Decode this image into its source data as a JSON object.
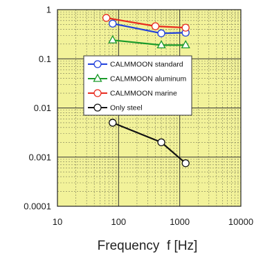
{
  "chart_data": {
    "type": "line",
    "x_scale": "log",
    "y_scale": "log",
    "xlim": [
      10,
      10000
    ],
    "ylim": [
      0.0001,
      1
    ],
    "x_ticks": [
      "10",
      "100",
      "1000",
      "10000"
    ],
    "y_ticks": [
      "1",
      "0.1",
      "0.01",
      "0.001",
      "0.0001"
    ],
    "xlabel": "Frequency  f [Hz]",
    "ylabel": "",
    "grid": true,
    "legend_position": "upper-middle",
    "plot_background": "#f2f29a",
    "series": [
      {
        "name": "CALMMOON standard",
        "color": "#1f3fdc",
        "marker": "circle",
        "x": [
          80,
          500,
          1250
        ],
        "y": [
          0.52,
          0.33,
          0.34
        ]
      },
      {
        "name": "CALMMOON aluminum",
        "color": "#1a9a2a",
        "marker": "triangle",
        "x": [
          80,
          500,
          1250
        ],
        "y": [
          0.24,
          0.19,
          0.19
        ]
      },
      {
        "name": "CALMMOON marine",
        "color": "#e82a1e",
        "marker": "circle",
        "x": [
          63,
          400,
          1250
        ],
        "y": [
          0.68,
          0.46,
          0.43
        ]
      },
      {
        "name": "Only steel",
        "color": "#111111",
        "marker": "circle",
        "x": [
          80,
          500,
          1250
        ],
        "y": [
          0.005,
          0.002,
          0.00075
        ]
      }
    ]
  }
}
